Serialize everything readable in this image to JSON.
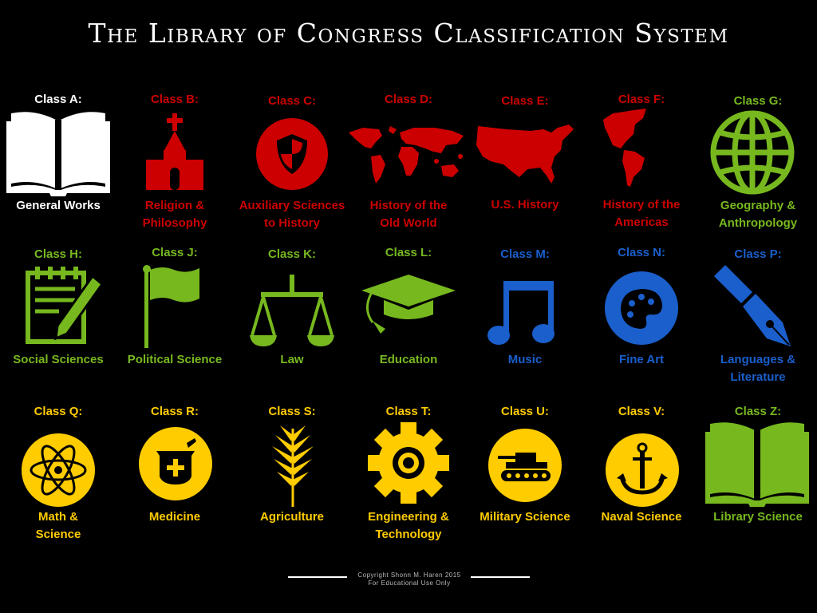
{
  "title": "The Library of Congress Classification System",
  "colors": {
    "red": "#cc0000",
    "green": "#77b81f",
    "blue": "#1a5fcc",
    "yellow": "#ffcc00",
    "white": "#ffffff"
  },
  "classes": [
    {
      "code": "Class A:",
      "label_1": "General Works",
      "label_2": "",
      "icon": "open-book-icon",
      "color": "white"
    },
    {
      "code": "Class B:",
      "label_1": "Religion &",
      "label_2": "Philosophy",
      "icon": "church-icon",
      "color": "red"
    },
    {
      "code": "Class C:",
      "label_1": "Auxiliary Sciences",
      "label_2": "to History",
      "icon": "shield-icon",
      "color": "red"
    },
    {
      "code": "Class D:",
      "label_1": "History of the",
      "label_2": "Old World",
      "icon": "world-map-icon",
      "color": "red"
    },
    {
      "code": "Class E:",
      "label_1": "U.S. History",
      "label_2": "",
      "icon": "usa-map-icon",
      "color": "red"
    },
    {
      "code": "Class F:",
      "label_1": "History of the",
      "label_2": "Americas",
      "icon": "americas-map-icon",
      "color": "red"
    },
    {
      "code": "Class G:",
      "label_1": "Geography &",
      "label_2": "Anthropology",
      "icon": "globe-icon",
      "color": "green"
    },
    {
      "code": "Class H:",
      "label_1": "Social Sciences",
      "label_2": "",
      "icon": "notepad-pencil-icon",
      "color": "green"
    },
    {
      "code": "Class J:",
      "label_1": "Political Science",
      "label_2": "",
      "icon": "flag-icon",
      "color": "green"
    },
    {
      "code": "Class K:",
      "label_1": "Law",
      "label_2": "",
      "icon": "scales-icon",
      "color": "green"
    },
    {
      "code": "Class L:",
      "label_1": "Education",
      "label_2": "",
      "icon": "graduation-cap-icon",
      "color": "green"
    },
    {
      "code": "Class M:",
      "label_1": "Music",
      "label_2": "",
      "icon": "music-note-icon",
      "color": "blue"
    },
    {
      "code": "Class N:",
      "label_1": "Fine Art",
      "label_2": "",
      "icon": "palette-icon",
      "color": "blue"
    },
    {
      "code": "Class P:",
      "label_1": "Languages &",
      "label_2": "Literature",
      "icon": "fountain-pen-icon",
      "color": "blue"
    },
    {
      "code": "Class Q:",
      "label_1": "Math &",
      "label_2": "Science",
      "icon": "atom-icon",
      "color": "yellow"
    },
    {
      "code": "Class R:",
      "label_1": "Medicine",
      "label_2": "",
      "icon": "mortar-pestle-icon",
      "color": "yellow"
    },
    {
      "code": "Class S:",
      "label_1": "Agriculture",
      "label_2": "",
      "icon": "wheat-icon",
      "color": "yellow"
    },
    {
      "code": "Class T:",
      "label_1": "Engineering &",
      "label_2": "Technology",
      "icon": "gear-icon",
      "color": "yellow"
    },
    {
      "code": "Class U:",
      "label_1": "Military Science",
      "label_2": "",
      "icon": "tank-icon",
      "color": "yellow"
    },
    {
      "code": "Class V:",
      "label_1": "Naval Science",
      "label_2": "",
      "icon": "anchor-icon",
      "color": "yellow"
    },
    {
      "code": "Class Z:",
      "label_1": "Library Science",
      "label_2": "",
      "icon": "open-book-icon",
      "color": "green"
    }
  ],
  "footer": {
    "line_1": "Copyright Shonn M. Haren 2015",
    "line_2": "For Educational Use Only"
  }
}
